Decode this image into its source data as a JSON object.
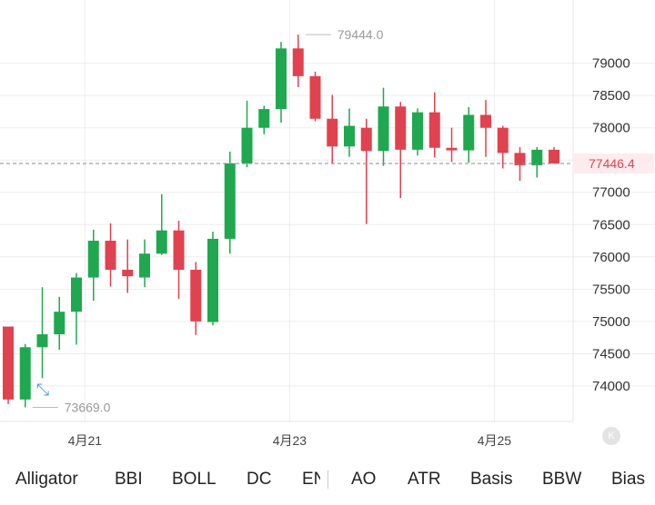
{
  "chart_data": {
    "type": "candlestick",
    "y_ticks": [
      "79000",
      "78500",
      "78000",
      "77500",
      "77000",
      "76500",
      "76000",
      "75500",
      "75000",
      "74500",
      "74000"
    ],
    "y_tick_values": [
      79000,
      78500,
      78000,
      77500,
      77000,
      76500,
      76000,
      75500,
      75000,
      74500,
      74000
    ],
    "ylim": [
      73450,
      79980
    ],
    "x_ticks": [
      {
        "label": "4月21",
        "index": 4.5
      },
      {
        "label": "4月23",
        "index": 16.5
      },
      {
        "label": "4月25",
        "index": 28.5
      }
    ],
    "grid": true,
    "high_annotation": {
      "label": "79444.0",
      "value": 79444,
      "index": 17
    },
    "low_annotation": {
      "label": "73669.0",
      "value": 73669,
      "index": 1
    },
    "last_price": {
      "label": "77446.4",
      "value": 77446.4
    },
    "colors": {
      "up": "#1fa84f",
      "down": "#e0424f",
      "last_price_line": "#888888"
    },
    "candles": [
      {
        "o": 74920,
        "h": 74920,
        "l": 73720,
        "c": 73790
      },
      {
        "o": 73790,
        "h": 74650,
        "l": 73669,
        "c": 74600
      },
      {
        "o": 74600,
        "h": 75530,
        "l": 74120,
        "c": 74800
      },
      {
        "o": 74800,
        "h": 75380,
        "l": 74560,
        "c": 75150
      },
      {
        "o": 75150,
        "h": 75750,
        "l": 74640,
        "c": 75680
      },
      {
        "o": 75680,
        "h": 76420,
        "l": 75320,
        "c": 76250
      },
      {
        "o": 76250,
        "h": 76520,
        "l": 75540,
        "c": 75800
      },
      {
        "o": 75800,
        "h": 76270,
        "l": 75440,
        "c": 75700
      },
      {
        "o": 75680,
        "h": 76270,
        "l": 75530,
        "c": 76050
      },
      {
        "o": 76050,
        "h": 76970,
        "l": 76030,
        "c": 76410
      },
      {
        "o": 76410,
        "h": 76560,
        "l": 75350,
        "c": 75800
      },
      {
        "o": 75800,
        "h": 75920,
        "l": 74790,
        "c": 75000
      },
      {
        "o": 74990,
        "h": 76390,
        "l": 74940,
        "c": 76280
      },
      {
        "o": 76280,
        "h": 77630,
        "l": 76050,
        "c": 77450
      },
      {
        "o": 77450,
        "h": 78420,
        "l": 77390,
        "c": 78000
      },
      {
        "o": 78000,
        "h": 78340,
        "l": 77900,
        "c": 78290
      },
      {
        "o": 78290,
        "h": 79330,
        "l": 78080,
        "c": 79230
      },
      {
        "o": 79230,
        "h": 79444,
        "l": 78630,
        "c": 78800
      },
      {
        "o": 78800,
        "h": 78870,
        "l": 78100,
        "c": 78140
      },
      {
        "o": 78140,
        "h": 78510,
        "l": 77440,
        "c": 77710
      },
      {
        "o": 77710,
        "h": 78300,
        "l": 77550,
        "c": 78030
      },
      {
        "o": 78000,
        "h": 78140,
        "l": 76510,
        "c": 77640
      },
      {
        "o": 77640,
        "h": 78620,
        "l": 77410,
        "c": 78330
      },
      {
        "o": 78330,
        "h": 78400,
        "l": 76910,
        "c": 77660
      },
      {
        "o": 77660,
        "h": 78300,
        "l": 77570,
        "c": 78240
      },
      {
        "o": 78240,
        "h": 78550,
        "l": 77540,
        "c": 77690
      },
      {
        "o": 77690,
        "h": 78000,
        "l": 77470,
        "c": 77650
      },
      {
        "o": 77650,
        "h": 78320,
        "l": 77460,
        "c": 78200
      },
      {
        "o": 78200,
        "h": 78430,
        "l": 77550,
        "c": 78000
      },
      {
        "o": 78000,
        "h": 78030,
        "l": 77370,
        "c": 77610
      },
      {
        "o": 77610,
        "h": 77700,
        "l": 77180,
        "c": 77420
      },
      {
        "o": 77420,
        "h": 77700,
        "l": 77230,
        "c": 77660
      },
      {
        "o": 77660,
        "h": 77700,
        "l": 77450,
        "c": 77446.4
      }
    ]
  },
  "indicators": {
    "items": [
      "Alligator",
      "BBI",
      "BOLL",
      "DC",
      "AO",
      "ATR",
      "Basis",
      "BBW",
      "Bias"
    ],
    "clipped_item": "EN"
  },
  "icons": {
    "collapse": "chevron-left-icon",
    "resize": "expand-diagonal-icon"
  }
}
